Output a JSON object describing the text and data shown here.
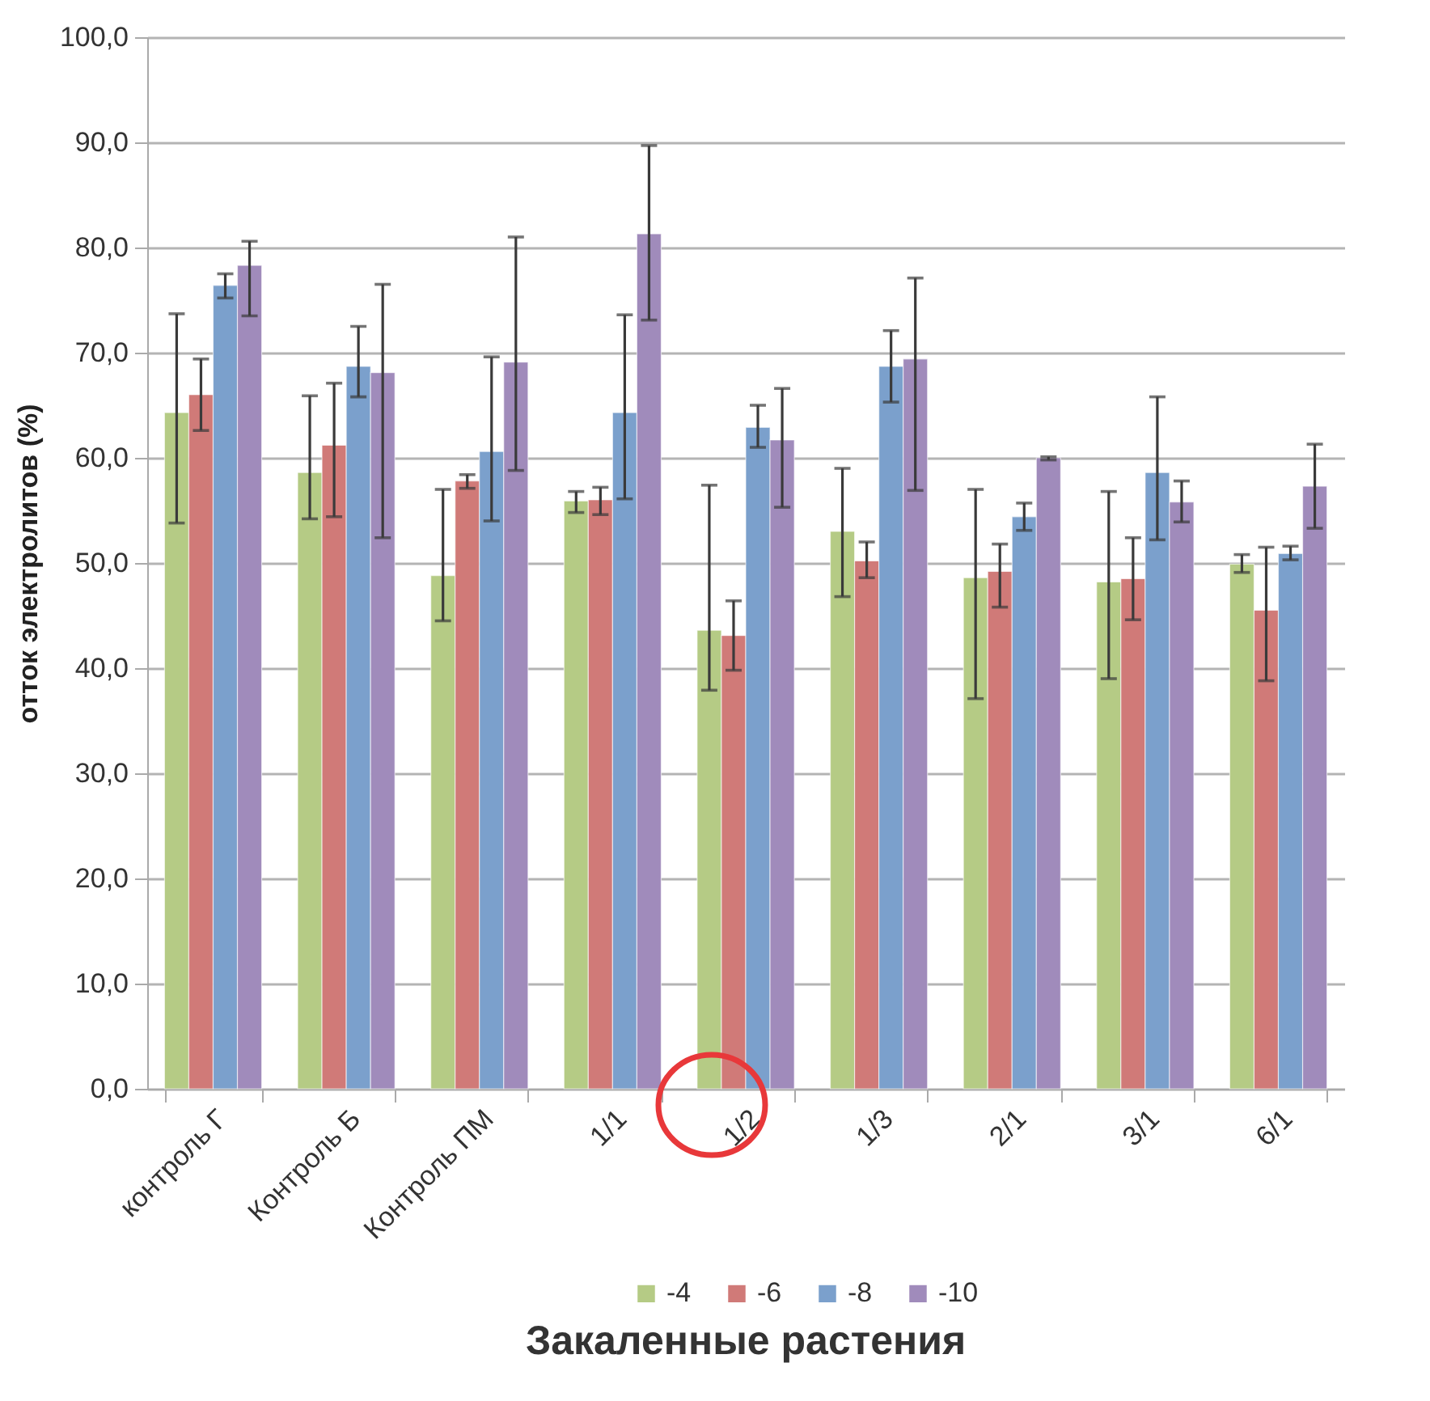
{
  "chart_data": {
    "type": "bar",
    "categories": [
      "контроль Г",
      "Контроль Б",
      "Контроль ПМ",
      "1/1",
      "1/2",
      "1/3",
      "2/1",
      "3/1",
      "6/1"
    ],
    "series": [
      {
        "name": "-4",
        "color": "#b5cb85",
        "values": [
          64.3,
          58.6,
          48.8,
          55.9,
          43.6,
          53.0,
          48.6,
          48.2,
          49.9
        ],
        "errors": [
          [
            53.8,
            73.7
          ],
          [
            54.2,
            65.9
          ],
          [
            44.5,
            57.0
          ],
          [
            54.8,
            56.8
          ],
          [
            37.9,
            57.4
          ],
          [
            46.8,
            59.0
          ],
          [
            37.1,
            57.0
          ],
          [
            39.0,
            56.8
          ],
          [
            49.1,
            50.8
          ]
        ]
      },
      {
        "name": "-6",
        "color": "#d07a78",
        "values": [
          66.0,
          61.2,
          57.8,
          56.0,
          43.1,
          50.2,
          49.2,
          48.5,
          45.5
        ],
        "errors": [
          [
            62.6,
            69.4
          ],
          [
            54.4,
            67.1
          ],
          [
            57.1,
            58.4
          ],
          [
            54.6,
            57.2
          ],
          [
            39.8,
            46.4
          ],
          [
            48.6,
            52.0
          ],
          [
            45.8,
            51.8
          ],
          [
            44.6,
            52.4
          ],
          [
            38.8,
            51.5
          ]
        ]
      },
      {
        "name": "-8",
        "color": "#7ba0cc",
        "values": [
          76.4,
          68.7,
          60.6,
          64.3,
          62.9,
          68.7,
          54.4,
          58.6,
          50.9
        ],
        "errors": [
          [
            75.2,
            77.5
          ],
          [
            65.8,
            72.5
          ],
          [
            54.0,
            69.6
          ],
          [
            56.1,
            73.6
          ],
          [
            61.0,
            65.0
          ],
          [
            65.3,
            72.1
          ],
          [
            53.1,
            55.7
          ],
          [
            52.2,
            65.8
          ],
          [
            50.3,
            51.6
          ]
        ]
      },
      {
        "name": "-10",
        "color": "#a08bbb",
        "values": [
          78.3,
          68.1,
          69.1,
          81.3,
          61.7,
          69.4,
          60.0,
          55.8,
          57.3
        ],
        "errors": [
          [
            73.5,
            80.6
          ],
          [
            52.4,
            76.5
          ],
          [
            58.8,
            81.0
          ],
          [
            73.1,
            89.7
          ],
          [
            55.3,
            66.6
          ],
          [
            56.9,
            77.1
          ],
          [
            59.8,
            60.1
          ],
          [
            53.9,
            57.8
          ],
          [
            53.3,
            61.3
          ]
        ]
      }
    ],
    "xlabel": "Закаленные растения",
    "ylabel": "отток электролитов (%)",
    "ylim": [
      0,
      100
    ],
    "yticks": [
      {
        "value": 0,
        "label": "0,0"
      },
      {
        "value": 10,
        "label": "10,0"
      },
      {
        "value": 20,
        "label": "20,0"
      },
      {
        "value": 30,
        "label": "30,0"
      },
      {
        "value": 40,
        "label": "40,0"
      },
      {
        "value": 50,
        "label": "50,0"
      },
      {
        "value": 60,
        "label": "60,0"
      },
      {
        "value": 70,
        "label": "70,0"
      },
      {
        "value": 80,
        "label": "80,0"
      },
      {
        "value": 90,
        "label": "90,0"
      },
      {
        "value": 100,
        "label": "100,0"
      }
    ],
    "grid": "y",
    "legend": "bottom"
  }
}
